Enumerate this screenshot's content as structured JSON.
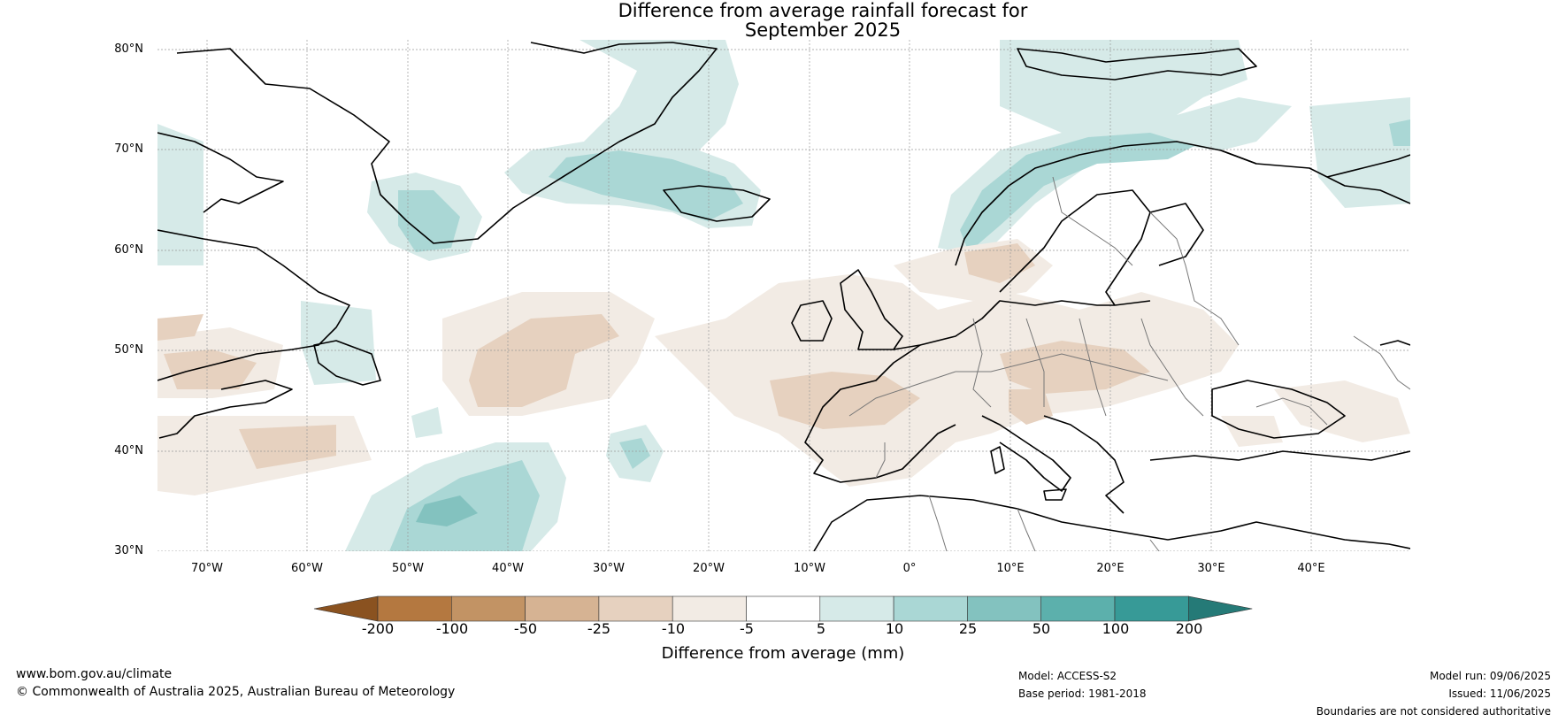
{
  "title": {
    "line1": "Difference from average rainfall forecast for",
    "line2": "September 2025"
  },
  "map": {
    "lat_ticks": [
      "80°N",
      "70°N",
      "60°N",
      "50°N",
      "40°N",
      "30°N"
    ],
    "lon_ticks": [
      "70°W",
      "60°W",
      "50°W",
      "40°W",
      "30°W",
      "20°W",
      "10°W",
      "0°",
      "10°E",
      "20°E",
      "30°E",
      "40°E"
    ],
    "extent": {
      "lon_min": -75,
      "lon_max": 50,
      "lat_min": 30,
      "lat_max": 81
    },
    "grid": true,
    "background": "#ffffff",
    "coastline_color": "#000000",
    "border_color": "#777777"
  },
  "colorbar": {
    "ticks": [
      "-200",
      "-100",
      "-50",
      "-25",
      "-10",
      "-5",
      "5",
      "10",
      "25",
      "50",
      "100",
      "200"
    ],
    "label": "Difference from average (mm)",
    "colors": [
      "#8a5220",
      "#b47840",
      "#c29364",
      "#d6b393",
      "#e6d1bf",
      "#f2ebe4",
      "#ffffff",
      "#d6eae8",
      "#aad7d5",
      "#83c2bf",
      "#5cb0ac",
      "#379a97",
      "#257a77"
    ]
  },
  "footer": {
    "website": "www.bom.gov.au/climate",
    "copyright": "© Commonwealth of Australia 2025, Australian Bureau of Meteorology",
    "model": "Model: ACCESS-S2",
    "base_period": "Base period: 1981-2018",
    "model_run": "Model run: 09/06/2025",
    "issued": "Issued: 11/06/2025",
    "disclaimer": "Boundaries are not considered authoritative"
  }
}
